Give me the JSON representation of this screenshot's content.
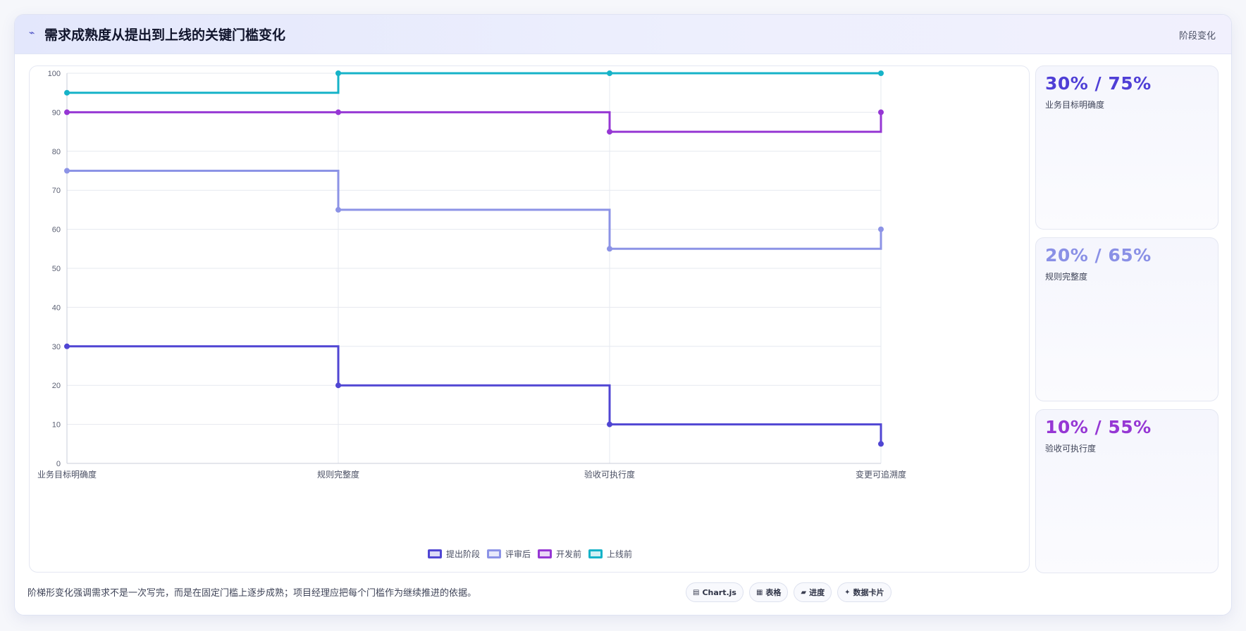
{
  "header": {
    "icon": "⌁",
    "title": "需求成熟度从提出到上线的关键门槛变化",
    "tag": "阶段变化"
  },
  "colors": {
    "series1": "#5046d3",
    "series2": "#8c93e6",
    "series3": "#9637d4",
    "series4": "#16b3c8",
    "grid": "#e6e8ef",
    "tick": "#5b6073"
  },
  "chart_data": {
    "type": "line",
    "step": "after",
    "categories": [
      "业务目标明确度",
      "规则完整度",
      "验收可执行度",
      "变更可追溯度"
    ],
    "ylim": [
      0,
      100
    ],
    "yticks": [
      0,
      10,
      20,
      30,
      40,
      50,
      60,
      70,
      80,
      90,
      100
    ],
    "grid": true,
    "legend_position": "bottom",
    "series": [
      {
        "name": "提出阶段",
        "color": "#5046d3",
        "values": [
          30,
          20,
          10,
          5
        ]
      },
      {
        "name": "评审后",
        "color": "#8c93e6",
        "values": [
          75,
          65,
          55,
          60
        ]
      },
      {
        "name": "开发前",
        "color": "#9637d4",
        "values": [
          90,
          90,
          85,
          90
        ]
      },
      {
        "name": "上线前",
        "color": "#16b3c8",
        "values": [
          95,
          100,
          100,
          100
        ]
      }
    ]
  },
  "kpis": [
    {
      "value": "30% / 75%",
      "label": "业务目标明确度",
      "color": "#4f3fd6"
    },
    {
      "value": "20% / 65%",
      "label": "规则完整度",
      "color": "#8a90e6"
    },
    {
      "value": "10% / 55%",
      "label": "验收可执行度",
      "color": "#9637d4"
    }
  ],
  "footer": {
    "note": "阶梯形变化强调需求不是一次写完，而是在固定门槛上逐步成熟；项目经理应把每个门槛作为继续推进的依据。",
    "chips": [
      {
        "icon": "▤",
        "label": "Chart.js"
      },
      {
        "icon": "▦",
        "label": "表格"
      },
      {
        "icon": "▰",
        "label": "进度"
      },
      {
        "icon": "✦",
        "label": "数据卡片"
      }
    ]
  }
}
